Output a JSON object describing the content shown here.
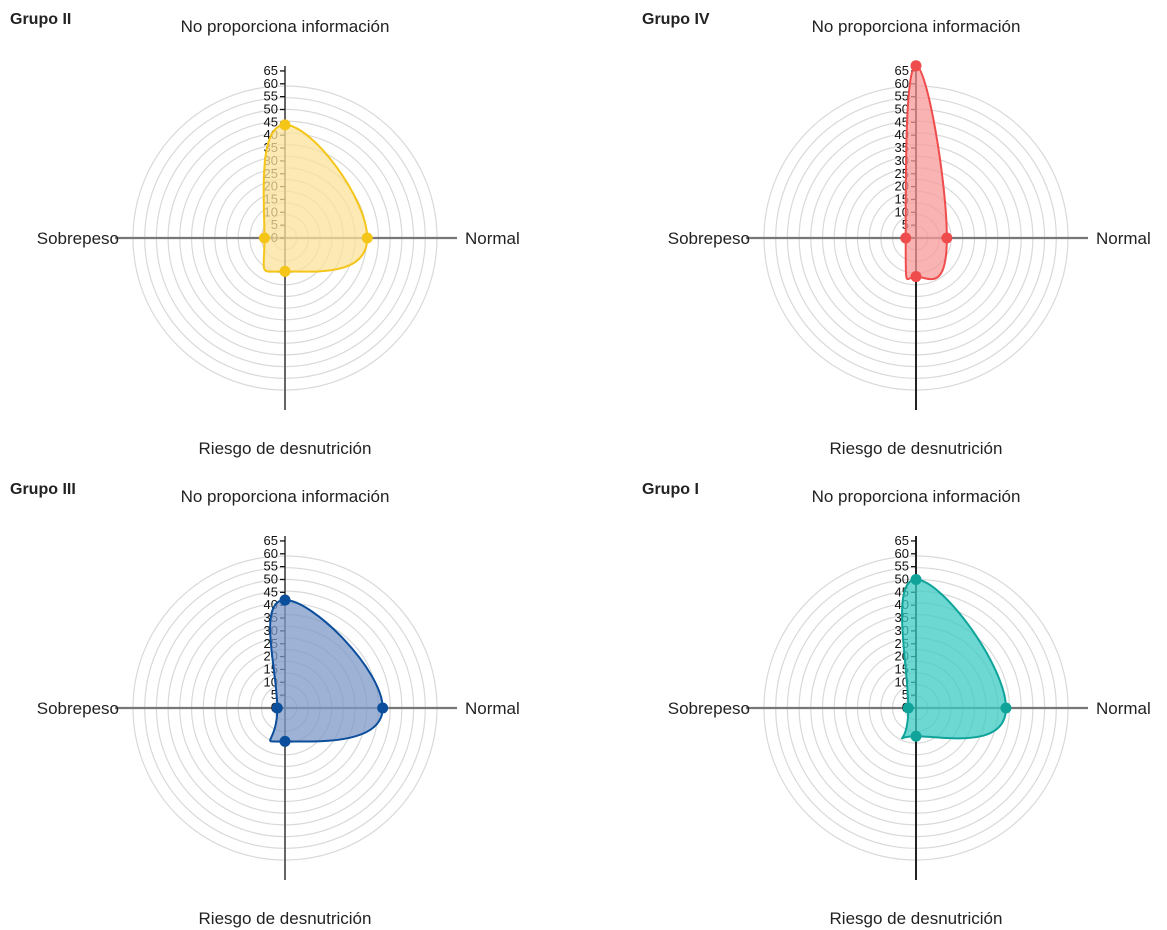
{
  "axis_labels": {
    "top": "No proporciona información",
    "right": "Normal",
    "bottom": "Riesgo de desnutrición",
    "left": "Sobrepeso"
  },
  "chart_data": [
    {
      "type": "radar",
      "title": "Grupo II",
      "color": "#f5c518",
      "fill": "#fbe29a",
      "axes": [
        "No proporciona información",
        "Normal",
        "Riesgo de desnutrición",
        "Sobrepeso"
      ],
      "values": [
        44,
        32,
        13,
        8
      ],
      "ticks": [
        0,
        5,
        10,
        15,
        20,
        25,
        30,
        35,
        40,
        45,
        50,
        55,
        60,
        65
      ],
      "rlim": [
        0,
        65
      ]
    },
    {
      "type": "radar",
      "title": "Grupo IV",
      "color": "#ef4d4d",
      "fill": "#f79a9a",
      "axes": [
        "No proporciona información",
        "Normal",
        "Riesgo de desnutrición",
        "Sobrepeso"
      ],
      "values": [
        67,
        12,
        15,
        4
      ],
      "ticks": [
        0,
        5,
        10,
        15,
        20,
        25,
        30,
        35,
        40,
        45,
        50,
        55,
        60,
        65
      ],
      "rlim": [
        0,
        65
      ]
    },
    {
      "type": "radar",
      "title": "Grupo III",
      "color": "#0b4f9c",
      "fill": "#7d98c8",
      "axes": [
        "No proporciona información",
        "Normal",
        "Riesgo de desnutrición",
        "Sobrepeso"
      ],
      "values": [
        42,
        38,
        13,
        3
      ],
      "ticks": [
        0,
        5,
        10,
        15,
        20,
        25,
        30,
        35,
        40,
        45,
        50,
        55,
        60,
        65
      ],
      "rlim": [
        0,
        65
      ]
    },
    {
      "type": "radar",
      "title": "Grupo I",
      "color": "#0fa39a",
      "fill": "#3ccbc3",
      "axes": [
        "No proporciona información",
        "Normal",
        "Riesgo de desnutrición",
        "Sobrepeso"
      ],
      "values": [
        50,
        35,
        11,
        3
      ],
      "ticks": [
        0,
        5,
        10,
        15,
        20,
        25,
        30,
        35,
        40,
        45,
        50,
        55,
        60,
        65
      ],
      "rlim": [
        0,
        65
      ]
    }
  ]
}
